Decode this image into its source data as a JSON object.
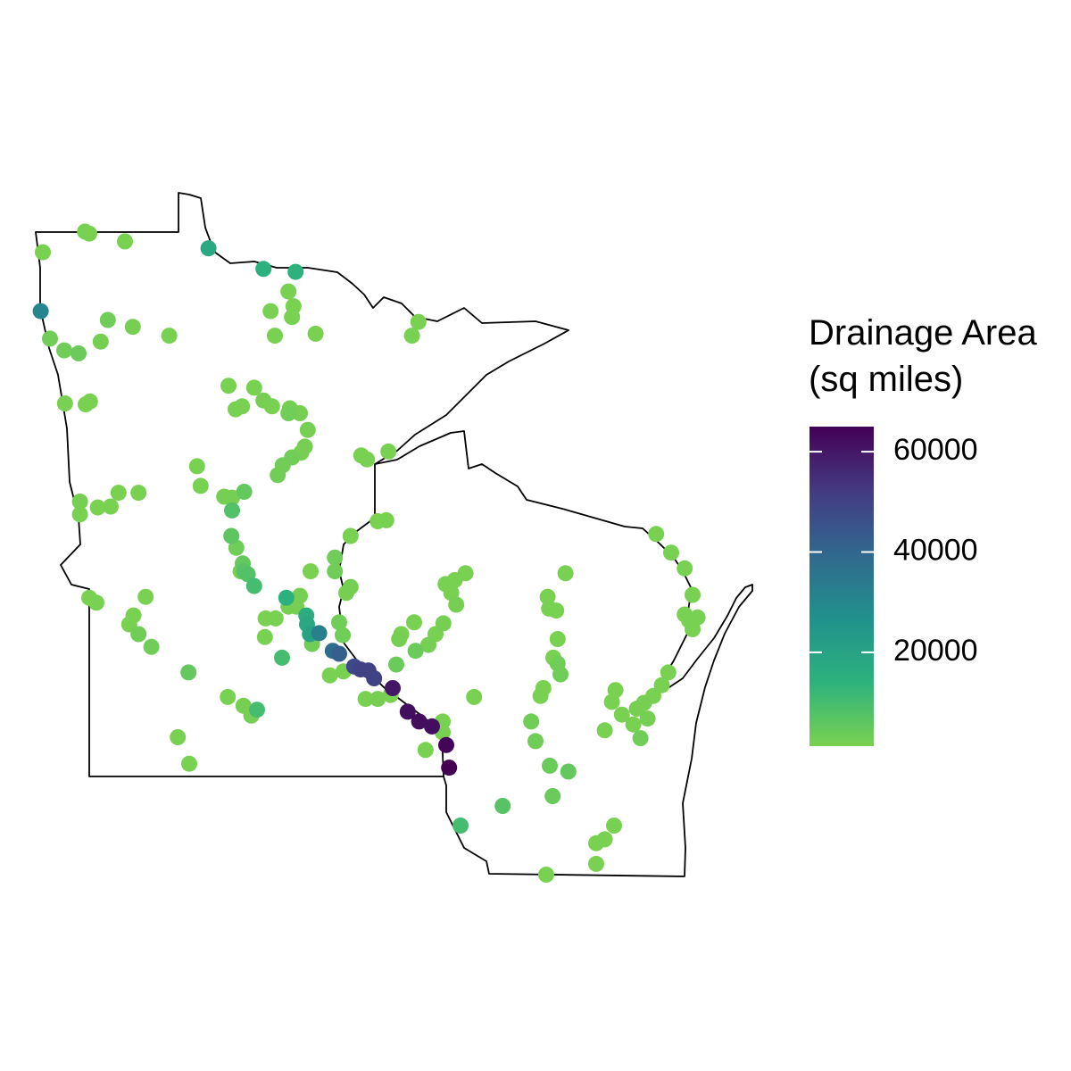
{
  "chart_data": {
    "type": "scatter",
    "x": [
      -97.1,
      -96.51,
      -96.45,
      -95.95,
      -94.78,
      -94.01,
      -93.56,
      -97.13,
      -97.0,
      -96.8,
      -96.6,
      -96.29,
      -96.19,
      -95.84,
      -95.33,
      -93.66,
      -93.59,
      -93.91,
      -93.61,
      -93.85,
      -93.28,
      -91.84,
      -91.93,
      -96.79,
      -96.5,
      -96.44,
      -94.5,
      -94.14,
      -94.4,
      -94.31,
      -94.01,
      -93.89,
      -93.64,
      -93.66,
      -93.5,
      -93.39,
      -93.43,
      -93.48,
      -93.61,
      -93.74,
      -93.81,
      -94.94,
      -94.89,
      -92.64,
      -92.56,
      -92.26,
      -96.58,
      -96.58,
      -96.33,
      -96.15,
      -96.04,
      -95.76,
      -94.56,
      -94.45,
      -94.28,
      -94.45,
      -94.46,
      -94.39,
      -94.3,
      -94.28,
      -94.23,
      -94.14,
      -94.33,
      -92.79,
      -92.41,
      -92.29,
      -93.01,
      -93.01,
      -93.35,
      -92.79,
      -92.85,
      -96.45,
      -96.35,
      -95.66,
      -95.83,
      -95.89,
      -95.76,
      -95.58,
      -95.06,
      -93.69,
      -93.5,
      -93.55,
      -93.66,
      -93.98,
      -93.84,
      -93.41,
      -93.4,
      -93.36,
      -93.33,
      -93.23,
      -93.99,
      -93.75,
      -92.95,
      -92.9,
      -93.04,
      -92.95,
      -92.74,
      -92.65,
      -92.54,
      -92.46,
      -92.2,
      -93.08,
      -92.89,
      -92.15,
      -92.58,
      -92.41,
      -92.23,
      -91.99,
      -91.83,
      -91.65,
      -91.45,
      -91.41,
      -91.5,
      -91.5,
      -91.74,
      -91.9,
      -92.08,
      -92.11,
      -91.88,
      -91.7,
      -91.6,
      -91.49,
      -91.46,
      -91.33,
      -91.18,
      -91.38,
      -91.31,
      -91.06,
      -94.51,
      -94.29,
      -94.18,
      -94.1,
      -95.21,
      -95.05,
      -89.78,
      -90.03,
      -90.01,
      -89.91,
      -89.89,
      -89.95,
      -89.89,
      -89.85,
      -90.09,
      -90.13,
      -90.26,
      -90.2,
      -90.0,
      -89.74,
      -89.96,
      -90.66,
      -91.25,
      -90.05,
      -89.35,
      -89.35,
      -89.23,
      -89.1,
      -88.51,
      -88.3,
      -88.11,
      -88.0,
      -88.11,
      -88.05,
      -87.93,
      -88.0,
      -88.34,
      -88.43,
      -88.55,
      -88.68,
      -88.78,
      -88.63,
      -88.73,
      -88.83,
      -88.99,
      -89.13,
      -89.23,
      -89.08
    ],
    "y": [
      48.84,
      49.05,
      49.03,
      48.95,
      48.88,
      48.67,
      48.64,
      48.24,
      47.96,
      47.84,
      47.81,
      47.93,
      48.15,
      48.08,
      47.99,
      48.44,
      48.29,
      48.24,
      48.18,
      47.99,
      48.01,
      48.13,
      47.99,
      47.3,
      47.29,
      47.32,
      47.48,
      47.46,
      47.24,
      47.27,
      47.33,
      47.27,
      47.25,
      47.2,
      47.2,
      47.03,
      46.86,
      46.8,
      46.75,
      46.67,
      46.57,
      46.66,
      46.46,
      46.77,
      46.73,
      46.81,
      46.3,
      46.17,
      46.24,
      46.25,
      46.39,
      46.39,
      46.35,
      46.34,
      46.4,
      46.21,
      45.95,
      45.83,
      45.67,
      45.59,
      45.56,
      45.44,
      45.59,
      45.95,
      46.1,
      46.11,
      45.73,
      45.59,
      45.59,
      45.43,
      45.37,
      45.32,
      45.27,
      45.33,
      45.14,
      45.05,
      44.95,
      44.82,
      44.56,
      45.32,
      45.34,
      45.23,
      45.23,
      45.11,
      45.11,
      45.14,
      45.05,
      44.95,
      44.85,
      44.96,
      44.92,
      44.71,
      45.07,
      44.94,
      44.78,
      44.75,
      44.62,
      44.59,
      44.58,
      44.5,
      44.4,
      44.53,
      44.57,
      44.64,
      44.29,
      44.29,
      44.33,
      44.16,
      44.06,
      44.01,
      43.82,
      43.59,
      44.06,
      43.95,
      43.77,
      45.07,
      44.95,
      44.9,
      44.78,
      44.84,
      44.95,
      45.06,
      45.46,
      45.5,
      45.57,
      45.37,
      45.25,
      44.31,
      44.31,
      44.22,
      44.12,
      44.18,
      43.9,
      43.63,
      45.57,
      45.33,
      45.21,
      45.19,
      44.9,
      44.71,
      44.65,
      44.54,
      44.4,
      44.32,
      44.06,
      43.86,
      43.61,
      43.55,
      43.3,
      43.2,
      43.0,
      42.5,
      42.61,
      42.82,
      42.86,
      43.0,
      45.97,
      45.78,
      45.62,
      45.35,
      45.15,
      45.09,
      45.12,
      45.0,
      44.56,
      44.43,
      44.32,
      44.25,
      44.19,
      44.09,
      43.89,
      44.03,
      44.13,
      44.26,
      43.97,
      44.38
    ],
    "values": [
      1500,
      1500,
      1500,
      1500,
      18000,
      15000,
      14000,
      30000,
      3000,
      3000,
      4000,
      2000,
      3000,
      2000,
      1500,
      1500,
      1500,
      1500,
      1500,
      1500,
      1500,
      1500,
      1500,
      1500,
      1500,
      1500,
      1500,
      1500,
      1500,
      1500,
      2000,
      1500,
      2000,
      3000,
      2000,
      2000,
      2000,
      2000,
      3000,
      3000,
      3000,
      1500,
      1500,
      1500,
      1500,
      1500,
      2000,
      1500,
      1500,
      1500,
      1500,
      1500,
      2000,
      2000,
      5000,
      8000,
      6000,
      3000,
      5000,
      7000,
      8000,
      10000,
      2000,
      1500,
      1500,
      1500,
      3000,
      3000,
      1500,
      2000,
      2000,
      1500,
      1500,
      1500,
      1500,
      1500,
      3000,
      3000,
      5000,
      15000,
      2000,
      2000,
      2000,
      1500,
      1500,
      16000,
      18000,
      20000,
      3000,
      32000,
      1500,
      10000,
      3000,
      3000,
      38000,
      42000,
      48000,
      50000,
      50000,
      50000,
      60000,
      1500,
      1500,
      4000,
      1500,
      2000,
      1500,
      62000,
      62000,
      62000,
      64000,
      65000,
      1500,
      1500,
      1500,
      1500,
      1500,
      2000,
      4000,
      2000,
      1500,
      2000,
      1500,
      1500,
      1500,
      1500,
      2000,
      1500,
      1500,
      2000,
      2000,
      10000,
      1500,
      1500,
      1500,
      1500,
      1500,
      1500,
      1500,
      1500,
      3000,
      3000,
      1500,
      1500,
      3000,
      3000,
      4000,
      5000,
      4000,
      7000,
      10000,
      1500,
      1500,
      1500,
      1500,
      1500,
      1500,
      1500,
      1500,
      1500,
      1500,
      1500,
      1500,
      1500,
      1500,
      1500,
      1500,
      2000,
      2000,
      2000,
      3000,
      1500,
      1500,
      1500,
      1500,
      1500
    ],
    "colorbar": {
      "title": [
        "Drainage Area",
        "(sq miles)"
      ],
      "lim": [
        1300,
        65000
      ],
      "ticks": [
        20000,
        40000,
        60000
      ],
      "colors": [
        "#7AD151",
        "#2DB27D",
        "#21918C",
        "#31688E",
        "#443A83",
        "#440154"
      ]
    }
  }
}
